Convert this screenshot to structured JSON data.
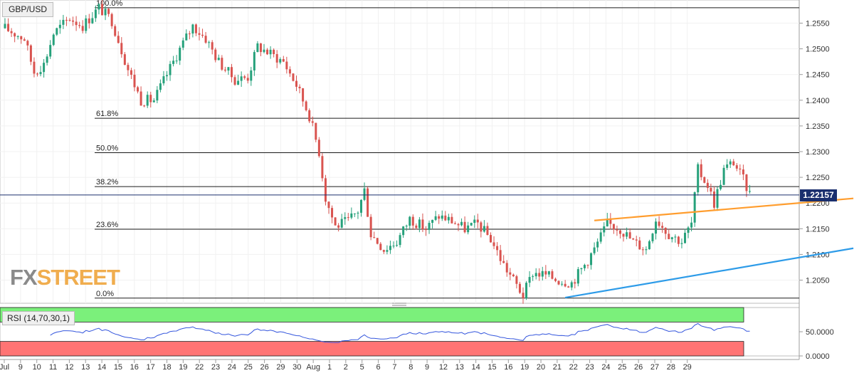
{
  "chart_data": {
    "type": "candlestick",
    "symbol": "GBP/USD",
    "last_price": "1.22157",
    "y_ticks": [
      "1.2550",
      "1.2500",
      "1.2450",
      "1.2400",
      "1.2350",
      "1.2300",
      "1.2250",
      "1.2200",
      "1.2150",
      "1.2100",
      "1.2050"
    ],
    "ylim": [
      1.2005,
      1.2595
    ],
    "x_ticks": [
      "Jul",
      "9",
      "10",
      "11",
      "12",
      "13",
      "14",
      "15",
      "16",
      "17",
      "18",
      "19",
      "22",
      "23",
      "24",
      "25",
      "26",
      "29",
      "30",
      "Aug",
      "1",
      "2",
      "5",
      "6",
      "7",
      "8",
      "9",
      "12",
      "13",
      "14",
      "15",
      "16",
      "19",
      "20",
      "21",
      "22",
      "23",
      "24",
      "25",
      "26",
      "27",
      "28",
      "29"
    ],
    "fibonacci_levels": [
      {
        "label": "100.0%",
        "price": 1.258
      },
      {
        "label": "61.8%",
        "price": 1.2365
      },
      {
        "label": "50.0%",
        "price": 1.2298
      },
      {
        "label": "38.2%",
        "price": 1.2232
      },
      {
        "label": "23.6%",
        "price": 1.2149
      },
      {
        "label": "0.0%",
        "price": 1.2015
      }
    ],
    "trendlines": [
      {
        "color": "#ff9d2e",
        "from": {
          "bar": 182,
          "price": 1.2166
        },
        "to": {
          "bar": 262,
          "price": 1.2209
        }
      },
      {
        "color": "#2d9be8",
        "from": {
          "bar": 173,
          "price": 1.2016
        },
        "to": {
          "bar": 262,
          "price": 1.2112
        }
      }
    ],
    "colors": {
      "up": "#26a17b",
      "down": "#d9534f",
      "rsi_line": "#3355dd"
    },
    "rsi": {
      "label": "RSI (14,70,30,1)",
      "levels": [
        70,
        30
      ],
      "ticks": [
        "50.0000",
        "0.0000"
      ],
      "ylim": [
        0,
        100
      ]
    }
  },
  "branding": {
    "logo_fx": "FX",
    "logo_street": "STREET"
  }
}
